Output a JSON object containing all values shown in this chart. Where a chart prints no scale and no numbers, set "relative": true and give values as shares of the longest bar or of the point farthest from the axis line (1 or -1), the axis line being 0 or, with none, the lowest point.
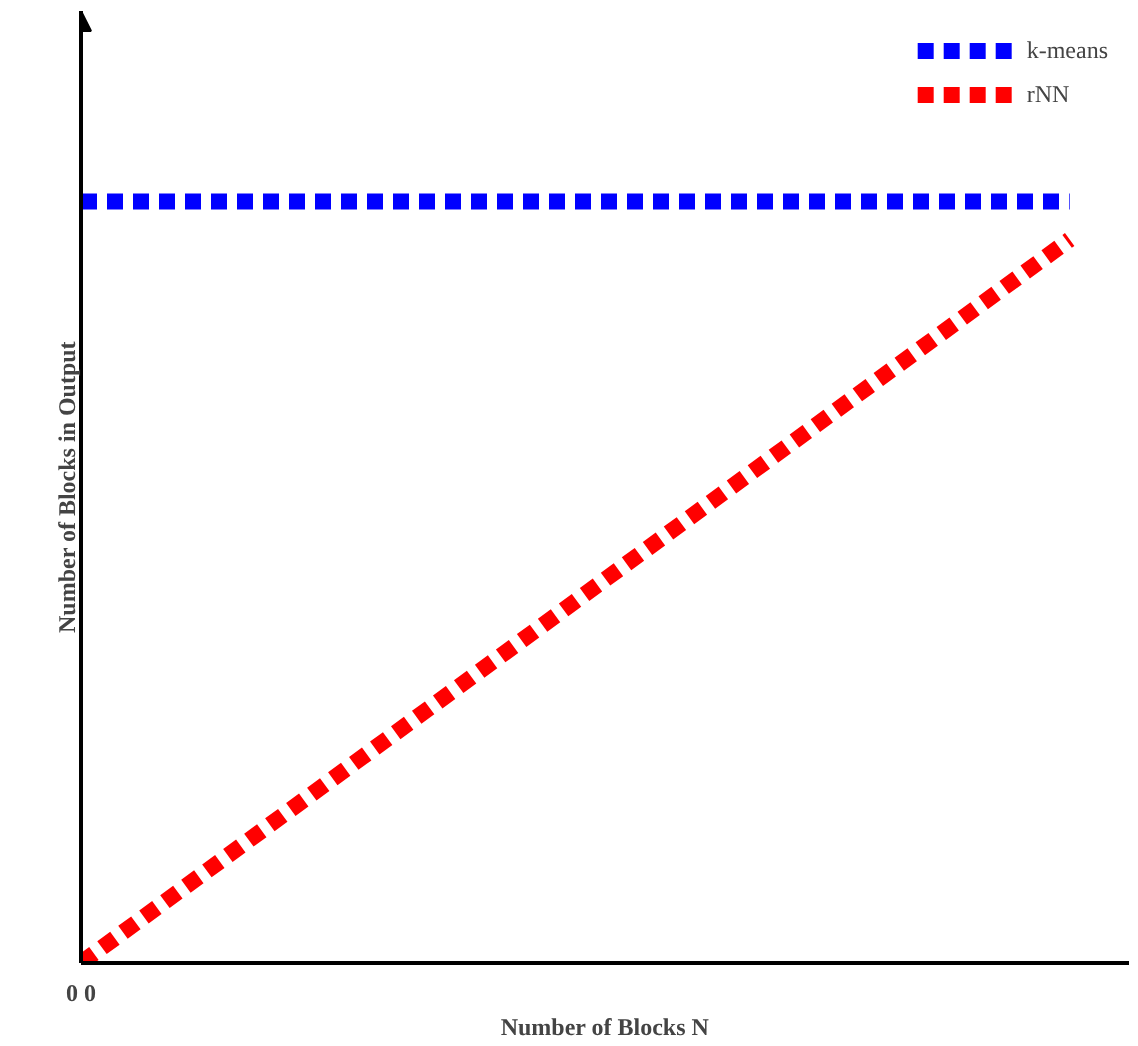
{
  "chart_data": {
    "type": "line",
    "relative": true,
    "xlabel": "Number of Blocks N",
    "ylabel": "Number of Blocks in Output",
    "categories": [
      null,
      null
    ],
    "series": [
      {
        "name": "k-means",
        "color": "#0000ff",
        "values": [
          1,
          1
        ]
      },
      {
        "name": "rNN",
        "color": "#ff0000",
        "values": [
          0,
          0.95
        ]
      }
    ],
    "annotations": [
      "0 0"
    ],
    "line_style": "dashed",
    "marker": "none",
    "legend": "top right"
  }
}
